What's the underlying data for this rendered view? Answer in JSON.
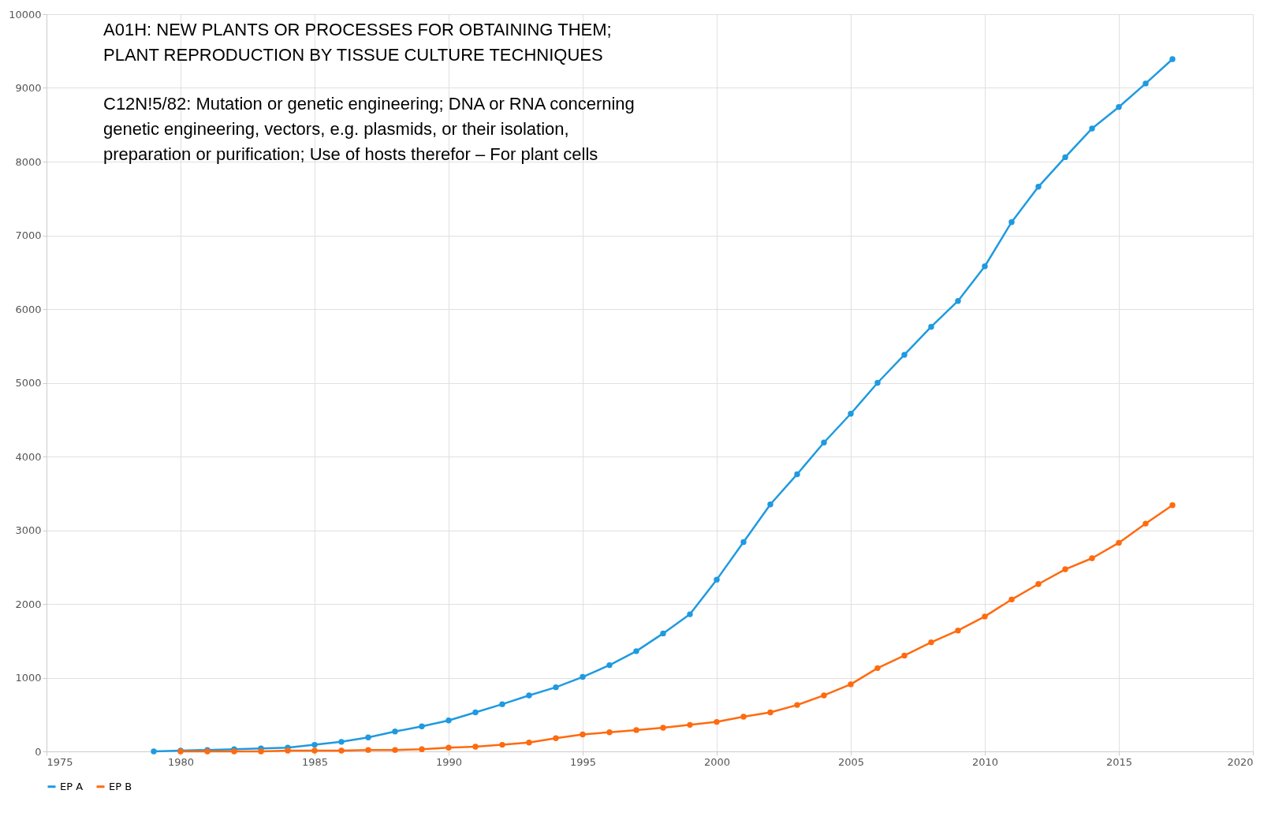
{
  "chart_data": {
    "type": "line",
    "annotations": [
      "A01H: NEW PLANTS OR PROCESSES FOR OBTAINING THEM;\nPLANT REPRODUCTION BY TISSUE CULTURE TECHNIQUES",
      "C12N!5/82: Mutation or genetic engineering; DNA or RNA concerning\ngenetic engineering, vectors, e.g. plasmids, or their isolation,\npreparation or purification; Use of hosts therefor – For plant cells"
    ],
    "x": [
      1979,
      1980,
      1981,
      1982,
      1983,
      1984,
      1985,
      1986,
      1987,
      1988,
      1989,
      1990,
      1991,
      1992,
      1993,
      1994,
      1995,
      1996,
      1997,
      1998,
      1999,
      2000,
      2001,
      2002,
      2003,
      2004,
      2005,
      2006,
      2007,
      2008,
      2009,
      2010,
      2011,
      2012,
      2013,
      2014,
      2015,
      2016,
      2017
    ],
    "series": [
      {
        "name": "EP A",
        "color": "#1f9ae0",
        "values": [
          0,
          10,
          20,
          30,
          40,
          50,
          90,
          130,
          190,
          270,
          340,
          420,
          530,
          640,
          760,
          870,
          1010,
          1170,
          1360,
          1600,
          1860,
          2330,
          2840,
          3350,
          3760,
          4190,
          4580,
          5000,
          5380,
          5760,
          6110,
          6580,
          7180,
          7660,
          8060,
          8450,
          8740,
          9060,
          9390
        ]
      },
      {
        "name": "EP B",
        "color": "#ff6a0f",
        "values": [
          null,
          0,
          0,
          0,
          0,
          10,
          10,
          10,
          20,
          20,
          30,
          50,
          65,
          90,
          120,
          180,
          230,
          260,
          290,
          320,
          360,
          400,
          470,
          530,
          630,
          760,
          910,
          1130,
          1300,
          1480,
          1640,
          1830,
          2060,
          2270,
          2470,
          2620,
          2830,
          3090,
          3340
        ]
      }
    ],
    "xlim": [
      1975,
      2020
    ],
    "xticks": [
      1975,
      1980,
      1985,
      1990,
      1995,
      2000,
      2005,
      2010,
      2015,
      2020
    ],
    "ylim": [
      0,
      10000
    ],
    "yticks": [
      0,
      1000,
      2000,
      3000,
      4000,
      5000,
      6000,
      7000,
      8000,
      9000,
      10000
    ],
    "grid": true,
    "legend": "bottom",
    "marker": "circle",
    "line_style": "solid"
  }
}
